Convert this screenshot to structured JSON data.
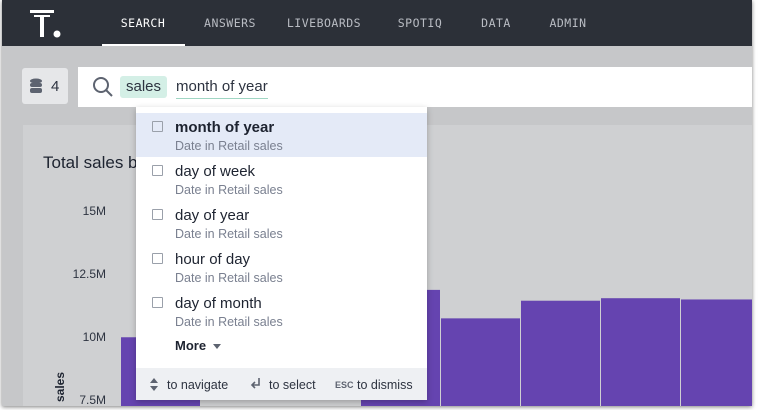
{
  "nav": {
    "tabs": [
      "SEARCH",
      "ANSWERS",
      "LIVEBOARDS",
      "SPOTIQ",
      "DATA",
      "ADMIN"
    ],
    "active": 0
  },
  "sources": {
    "count": 4
  },
  "search": {
    "tokens": [
      "sales",
      "month of year"
    ]
  },
  "suggestions": {
    "items": [
      {
        "title": "month of year",
        "subtitle": "Date in Retail sales"
      },
      {
        "title": "day of week",
        "subtitle": "Date in Retail sales"
      },
      {
        "title": "day of year",
        "subtitle": "Date in Retail sales"
      },
      {
        "title": "hour of day",
        "subtitle": "Date in Retail sales"
      },
      {
        "title": "day of month",
        "subtitle": "Date in Retail sales"
      }
    ],
    "more": "More"
  },
  "hints": {
    "navigate": "to navigate",
    "select": "to select",
    "esc_key": "ESC",
    "dismiss": "to dismiss"
  },
  "chart": {
    "title": "Total sales b",
    "y_label": "sales",
    "color": "#6544b0",
    "ylim": [
      7500000,
      15000000
    ],
    "yticks": [
      {
        "value": 7500000,
        "label": "7.5M"
      },
      {
        "value": 10000000,
        "label": "10M"
      },
      {
        "value": 12500000,
        "label": "12.5M"
      },
      {
        "value": 15000000,
        "label": "15M"
      }
    ],
    "values": [
      9950000,
      null,
      null,
      11830000,
      10700000,
      11400000,
      11500000,
      11450000
    ]
  }
}
